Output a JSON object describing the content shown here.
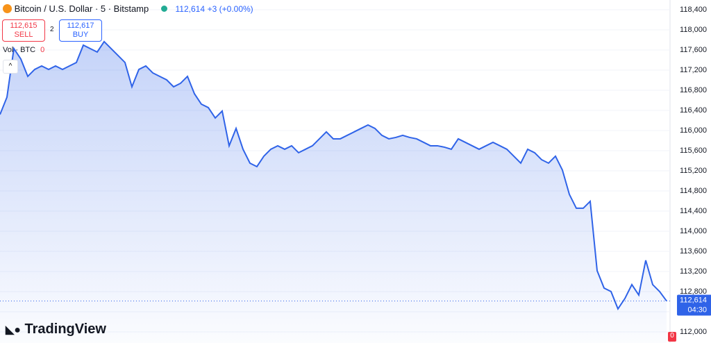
{
  "chart_data": {
    "type": "area",
    "title": "Bitcoin / U.S. Dollar · 5 · Bitstamp",
    "header_price": "112,614",
    "header_change": "+3 (+0.00%)",
    "sell": {
      "price": "112,615",
      "label": "SELL"
    },
    "spread": "2",
    "buy": {
      "price": "112,617",
      "label": "BUY"
    },
    "volume_label": "Vol · BTC",
    "volume_value": "0",
    "brand": "TradingView",
    "countdown": "04:30",
    "badge": "0",
    "color": "#2f63e8",
    "last_price": {
      "value": 112614,
      "label": "112,614"
    },
    "values": [
      116318,
      116662,
      117628,
      117421,
      117076,
      117214,
      117283,
      117214,
      117283,
      117214,
      117283,
      117352,
      117697,
      117628,
      117559,
      117766,
      117628,
      117490,
      117352,
      116869,
      117214,
      117283,
      117145,
      117076,
      117007,
      116869,
      116938,
      117076,
      116731,
      116524,
      116456,
      116249,
      116387,
      115697,
      116042,
      115628,
      115352,
      115283,
      115490,
      115628,
      115697,
      115628,
      115697,
      115559,
      115628,
      115697,
      115835,
      115973,
      115835,
      115835,
      115904,
      115973,
      116042,
      116111,
      116042,
      115904,
      115835,
      115863,
      115904,
      115863,
      115835,
      115766,
      115697,
      115697,
      115670,
      115628,
      115835,
      115766,
      115697,
      115628,
      115697,
      115766,
      115697,
      115628,
      115490,
      115352,
      115628,
      115559,
      115421,
      115352,
      115490,
      115214,
      114732,
      114456,
      114456,
      114594,
      113215,
      112870,
      112801,
      112457,
      112663,
      112939,
      112732,
      113422,
      112939,
      112801,
      112614
    ],
    "ylim": [
      111779,
      118593
    ],
    "yticks": [
      {
        "value": 112000,
        "label": "112,000"
      },
      {
        "value": 112400,
        "label": "112,400"
      },
      {
        "value": 112800,
        "label": "112,800"
      },
      {
        "value": 113200,
        "label": "113,200"
      },
      {
        "value": 113600,
        "label": "113,600"
      },
      {
        "value": 114000,
        "label": "114,000"
      },
      {
        "value": 114400,
        "label": "114,400"
      },
      {
        "value": 114800,
        "label": "114,800"
      },
      {
        "value": 115200,
        "label": "115,200"
      },
      {
        "value": 115600,
        "label": "115,600"
      },
      {
        "value": 116000,
        "label": "116,000"
      },
      {
        "value": 116400,
        "label": "116,400"
      },
      {
        "value": 116800,
        "label": "116,800"
      },
      {
        "value": 117200,
        "label": "117,200"
      },
      {
        "value": 117600,
        "label": "117,600"
      },
      {
        "value": 118000,
        "label": "118,000"
      },
      {
        "value": 118400,
        "label": "118,400"
      }
    ],
    "grid": true
  }
}
